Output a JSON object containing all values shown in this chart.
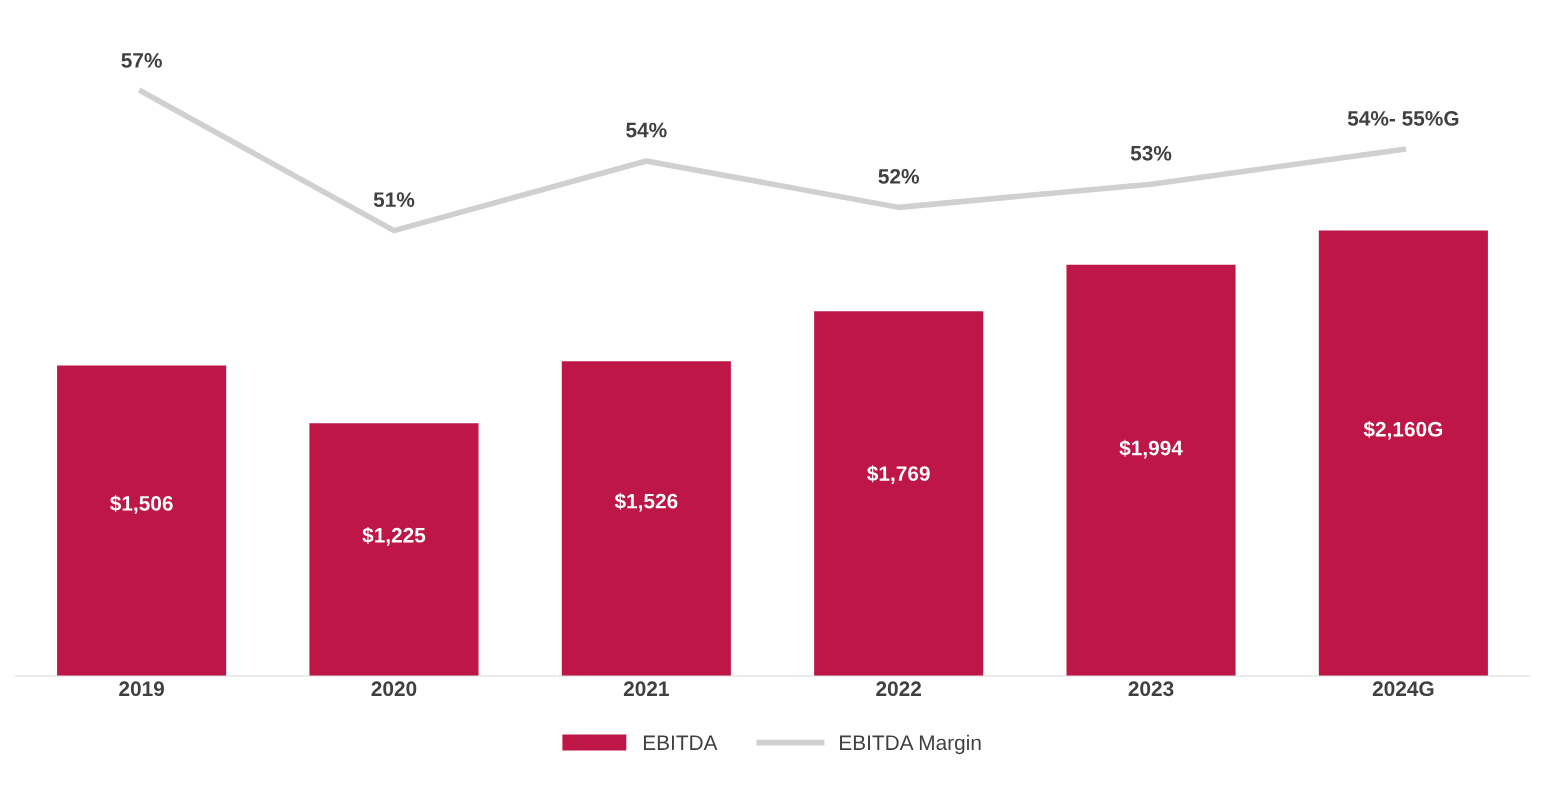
{
  "chart_data": {
    "type": "bar",
    "categories": [
      "2019",
      "2020",
      "2021",
      "2022",
      "2023",
      "2024G"
    ],
    "series": [
      {
        "name": "EBITDA",
        "color": "#be1646",
        "values": [
          1506,
          1225,
          1526,
          1769,
          1994,
          2160
        ],
        "value_labels": [
          "$1,506",
          "$1,225",
          "$1,526",
          "$1,769",
          "$1,994",
          "$2,160G"
        ]
      },
      {
        "name": "EBITDA Margin",
        "type": "line",
        "axis": "y2",
        "color": "#d0d0d0",
        "values": [
          57,
          51,
          54,
          52,
          53,
          54.5
        ],
        "value_labels": [
          "57%",
          "51%",
          "54%",
          "52%",
          "53%",
          "54%- 55%G"
        ]
      }
    ],
    "legend": "bottom",
    "grid": false,
    "marker": "none",
    "line_style": "solid",
    "tick_labels": "x"
  }
}
